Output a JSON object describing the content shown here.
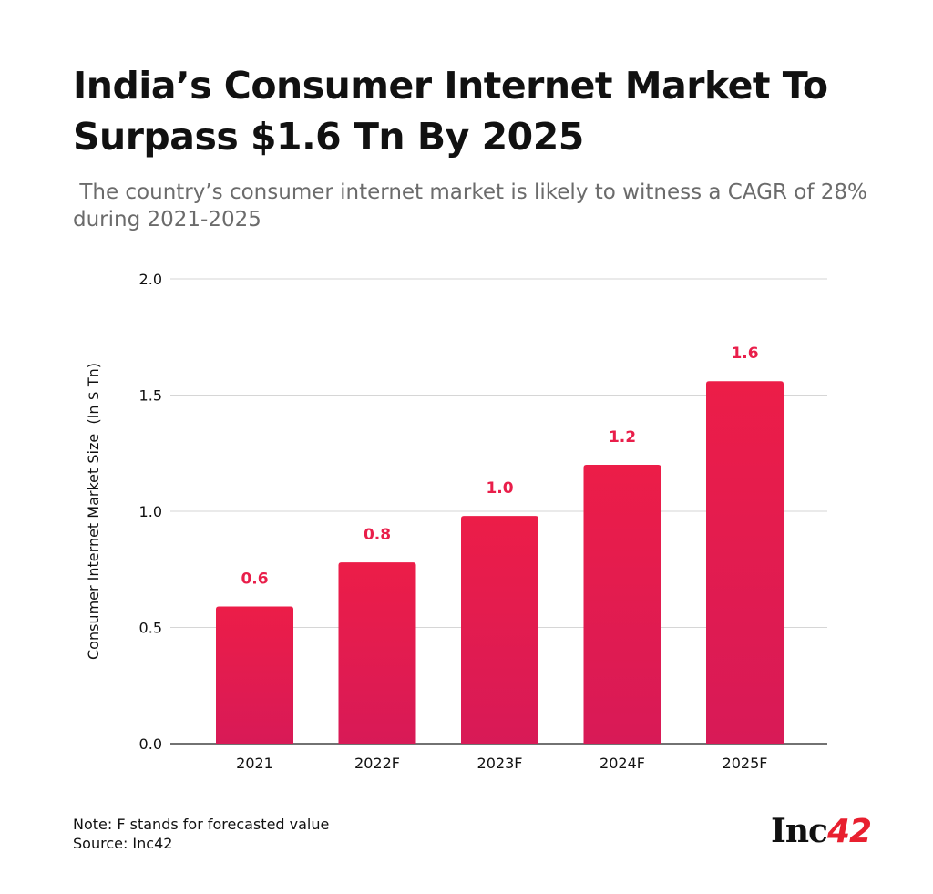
{
  "chart_data": {
    "type": "bar",
    "title": "India’s Consumer Internet Market To Surpass $1.6 Tn By 2025",
    "subtitle": " The country’s consumer internet market is likely to witness a CAGR of 28% during 2021-2025",
    "categories": [
      "2021",
      "2022F",
      "2023F",
      "2024F",
      "2025F"
    ],
    "values": [
      0.59,
      0.78,
      0.98,
      1.2,
      1.56
    ],
    "data_labels": [
      "0.6",
      "0.8",
      "1.0",
      "1.2",
      "1.6"
    ],
    "xlabel": "",
    "ylabel": "Consumer Internet Market Size  (In $ Tn)",
    "ylim": [
      0,
      2.0
    ],
    "yticks": [
      "0.0",
      "0.5",
      "1.0",
      "1.5",
      "2.0"
    ],
    "grid": true,
    "bar_color": "#e91e4a",
    "label_color": "#e91e4a"
  },
  "footer": {
    "note": "Note: F stands for forecasted value",
    "source": "Source: Inc42"
  },
  "logo": {
    "text": "Inc",
    "number": "42"
  }
}
